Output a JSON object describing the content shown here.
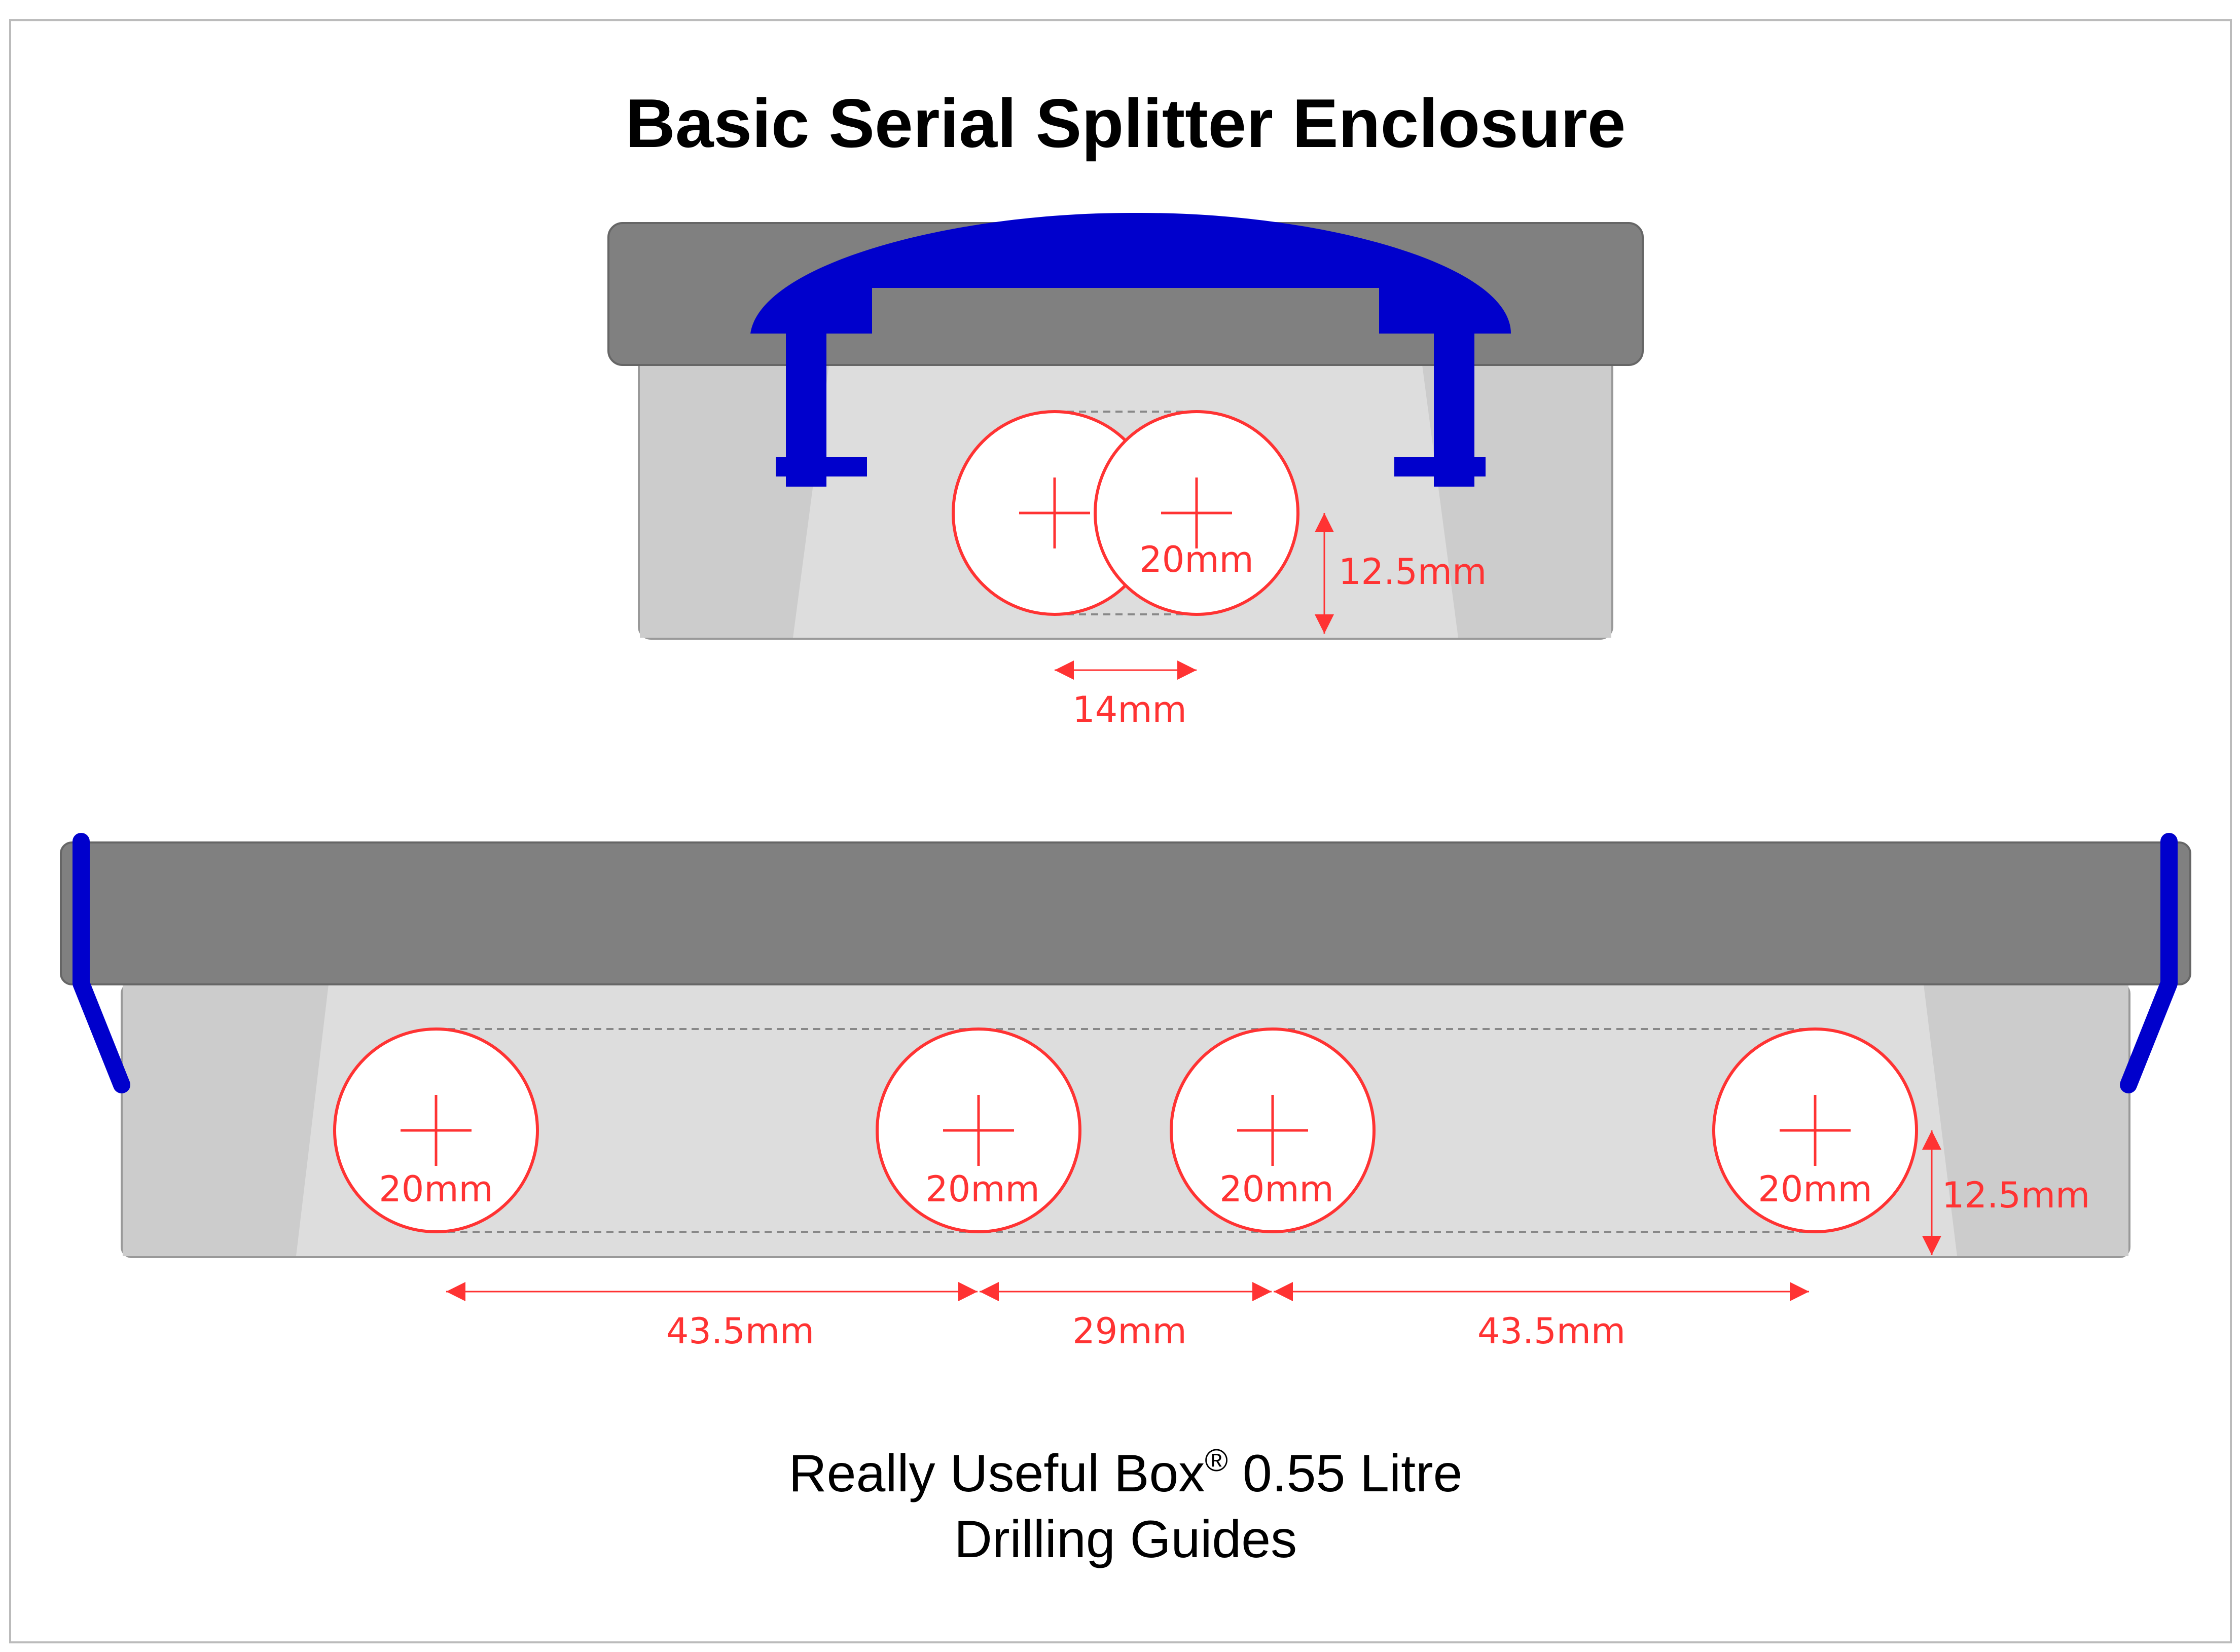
{
  "title": "Basic Serial Splitter Enclosure",
  "footer": {
    "line1_main": "Really Useful Box",
    "line1_mark": "®",
    "line1_rest": " 0.55 Litre",
    "line2": "Drilling Guides"
  },
  "end_view": {
    "hole_label": "20mm",
    "height_label": "12.5mm",
    "spacing_label": "14mm"
  },
  "side_view": {
    "hole_labels": [
      "20mm",
      "20mm",
      "20mm",
      "20mm"
    ],
    "height_label": "12.5mm",
    "spacing_labels": [
      "43.5mm",
      "29mm",
      "43.5mm"
    ]
  },
  "colors": {
    "lid": "#808080",
    "body_light": "#dddddd",
    "body_mid": "#cccccc",
    "clip": "#0000cc",
    "dimension": "#ff3333",
    "hole_fill": "#ffffff",
    "frame": "#bbbbbb"
  }
}
